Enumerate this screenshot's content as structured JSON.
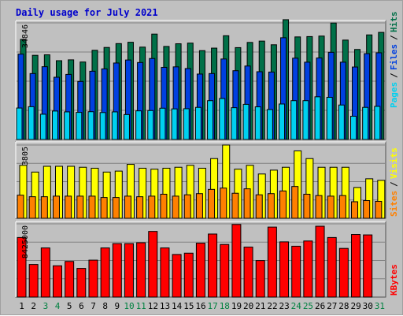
{
  "title": "Daily usage for July 2021",
  "colors": {
    "background": "#c0c0c0",
    "title": "#0000cc",
    "hits": "#007048",
    "files": "#0040e0",
    "pages": "#00d0f0",
    "visits": "#ffff00",
    "sites": "#ff8000",
    "kbytes": "#ff0000",
    "day_normal": "#000000",
    "day_weekend": "#008040"
  },
  "chart_data": [
    {
      "type": "bar",
      "panel": "hits-files-pages",
      "categories": [
        "1",
        "2",
        "3",
        "4",
        "5",
        "6",
        "7",
        "8",
        "9",
        "10",
        "11",
        "12",
        "13",
        "14",
        "15",
        "16",
        "17",
        "18",
        "19",
        "20",
        "21",
        "22",
        "23",
        "24",
        "25",
        "26",
        "27",
        "28",
        "29",
        "30",
        "31"
      ],
      "y_max_label": "34846",
      "ylim": [
        0,
        34846
      ],
      "grid": true,
      "series": [
        {
          "name": "Hits",
          "values": [
            29900,
            25150,
            25300,
            23550,
            23800,
            23150,
            26650,
            27500,
            28650,
            29050,
            27600,
            31500,
            27800,
            28600,
            28800,
            26550,
            27300,
            31000,
            27450,
            29000,
            29400,
            28300,
            35800,
            30650,
            30750,
            30900,
            34800,
            29700,
            26900,
            31250,
            32000
          ]
        },
        {
          "name": "Files",
          "values": [
            25500,
            19700,
            21750,
            18600,
            19450,
            17350,
            20400,
            21100,
            22850,
            23750,
            23000,
            24200,
            21550,
            21700,
            21200,
            19550,
            19700,
            24050,
            20550,
            21950,
            20250,
            20150,
            30400,
            24300,
            23100,
            24350,
            26050,
            23100,
            21650,
            25650,
            25900
          ]
        },
        {
          "name": "Pages",
          "values": [
            9400,
            9800,
            7550,
            8500,
            8250,
            8100,
            8300,
            8050,
            8250,
            7450,
            8550,
            8650,
            9350,
            9150,
            9200,
            9600,
            11600,
            12250,
            9500,
            10500,
            9750,
            8950,
            10600,
            11600,
            11600,
            12750,
            12600,
            10300,
            6950,
            9600,
            9900
          ]
        }
      ],
      "legend": [
        "Pages",
        "/",
        "Files",
        "/",
        "Hits"
      ]
    },
    {
      "type": "bar",
      "panel": "visits-sites",
      "categories": [
        "1",
        "2",
        "3",
        "4",
        "5",
        "6",
        "7",
        "8",
        "9",
        "10",
        "11",
        "12",
        "13",
        "14",
        "15",
        "16",
        "17",
        "18",
        "19",
        "20",
        "21",
        "22",
        "23",
        "24",
        "25",
        "26",
        "27",
        "28",
        "29",
        "30",
        "31"
      ],
      "y_max_label": "3805",
      "ylim": [
        0,
        3805
      ],
      "grid": true,
      "series": [
        {
          "name": "Visits",
          "values": [
            2750,
            2400,
            2700,
            2700,
            2700,
            2650,
            2600,
            2400,
            2450,
            2800,
            2600,
            2550,
            2600,
            2650,
            2750,
            2600,
            3100,
            3805,
            2550,
            2750,
            2300,
            2500,
            2650,
            3500,
            3100,
            2650,
            2650,
            2650,
            1600,
            2050,
            1970
          ]
        },
        {
          "name": "Sites",
          "values": [
            1200,
            1120,
            1120,
            1150,
            1150,
            1150,
            1150,
            1080,
            1080,
            1150,
            1120,
            1150,
            1250,
            1150,
            1220,
            1280,
            1500,
            1570,
            1300,
            1530,
            1220,
            1280,
            1420,
            1650,
            1250,
            1180,
            1150,
            1180,
            860,
            920,
            880
          ]
        }
      ],
      "legend": [
        "Sites",
        "/",
        "Visits"
      ]
    },
    {
      "type": "bar",
      "panel": "kbytes",
      "categories": [
        "1",
        "2",
        "3",
        "4",
        "5",
        "6",
        "7",
        "8",
        "9",
        "10",
        "11",
        "12",
        "13",
        "14",
        "15",
        "16",
        "17",
        "18",
        "19",
        "20",
        "21",
        "22",
        "23",
        "24",
        "25",
        "26",
        "27",
        "28",
        "29",
        "30",
        "31"
      ],
      "y_max_label": "8425000",
      "ylim": [
        0,
        8425000
      ],
      "grid": true,
      "series": [
        {
          "name": "KBytes",
          "values": [
            6850000,
            3750000,
            5650000,
            3600000,
            4100000,
            3300000,
            4250000,
            5650000,
            6150000,
            6150000,
            6250000,
            7550000,
            5650000,
            4900000,
            5050000,
            6200000,
            7250000,
            6050000,
            8350000,
            5750000,
            4200000,
            8050000,
            6350000,
            5850000,
            6450000,
            8150000,
            6850000,
            5600000,
            7200000,
            7150000,
            0
          ]
        }
      ],
      "legend": [
        "KBytes"
      ]
    }
  ],
  "x_axis": {
    "labels": [
      "1",
      "2",
      "3",
      "4",
      "5",
      "6",
      "7",
      "8",
      "9",
      "10",
      "11",
      "12",
      "13",
      "14",
      "15",
      "16",
      "17",
      "18",
      "19",
      "20",
      "21",
      "22",
      "23",
      "24",
      "25",
      "26",
      "27",
      "28",
      "29",
      "30",
      "31"
    ],
    "weekend_days": [
      "3",
      "4",
      "10",
      "11",
      "17",
      "18",
      "24",
      "25",
      "31"
    ]
  }
}
